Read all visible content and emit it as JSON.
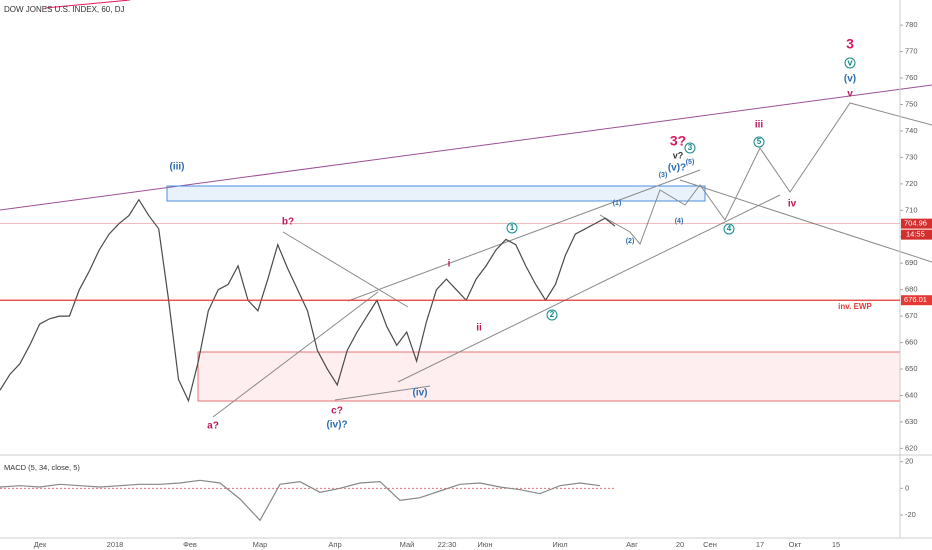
{
  "chart_data": {
    "type": "line",
    "title": "DOW JONES U.S. INDEX, 60, DJ",
    "series": [
      {
        "name": "DJ",
        "color": "#4a4a4a",
        "values": [
          642,
          648,
          652,
          659,
          667,
          669,
          670,
          670,
          680,
          687,
          695,
          701,
          705,
          708,
          714,
          708,
          703,
          676,
          646,
          638,
          653,
          672,
          680,
          682,
          689,
          676,
          672,
          684,
          697,
          688,
          680,
          672,
          657,
          650,
          644,
          657,
          664,
          670,
          676,
          666,
          659,
          664,
          653,
          668,
          680,
          684,
          680,
          676,
          684,
          689,
          695,
          699,
          697,
          689,
          682,
          676,
          682,
          693,
          701,
          703,
          705,
          707,
          704
        ]
      }
    ],
    "ylim": [
      617.5,
      789.5
    ],
    "yticks": [
      620,
      630,
      640,
      650,
      660,
      670,
      680,
      690,
      700,
      710,
      720,
      730,
      740,
      750,
      760,
      770,
      780
    ],
    "x_labels": [
      "Дек",
      "2018",
      "Фев",
      "Мар",
      "Апр",
      "Май",
      "22:30",
      "Июн",
      "Июл",
      "Авг",
      "20",
      "Сен",
      "17",
      "Окт",
      "15"
    ],
    "price_markers": [
      {
        "value": 704.96,
        "color": "#d32f2f"
      },
      {
        "value": 676.01,
        "color": "#e53935"
      }
    ],
    "countdown": "14:55",
    "annotations": [
      {
        "text": "3",
        "color": "#d81b60"
      },
      {
        "text": "v",
        "color": "#138a8a",
        "circled": true
      },
      {
        "text": "(v)",
        "color": "#2b6cb0"
      },
      {
        "text": "v",
        "color": "#c2185b"
      },
      {
        "text": "iii",
        "color": "#c2185b"
      },
      {
        "text": "3?",
        "color": "#d81b60"
      },
      {
        "text": "v?",
        "color": "#333333"
      },
      {
        "text": "(v)?",
        "color": "#2b6cb0"
      },
      {
        "text": "3",
        "color": "#138a8a",
        "circled": true
      },
      {
        "text": "(3)",
        "color": "#2b6cb0"
      },
      {
        "text": "(5)",
        "color": "#2b6cb0"
      },
      {
        "text": "(1)",
        "color": "#2b6cb0"
      },
      {
        "text": "(2)",
        "color": "#2b6cb0"
      },
      {
        "text": "(4)",
        "color": "#2b6cb0"
      },
      {
        "text": "5",
        "color": "#138a8a",
        "circled": true
      },
      {
        "text": "4",
        "color": "#138a8a",
        "circled": true
      },
      {
        "text": "iv",
        "color": "#c2185b"
      },
      {
        "text": "i",
        "color": "#c2185b"
      },
      {
        "text": "ii",
        "color": "#c2185b"
      },
      {
        "text": "1",
        "color": "#138a8a",
        "circled": true
      },
      {
        "text": "2",
        "color": "#138a8a",
        "circled": true
      },
      {
        "text": "b?",
        "color": "#c2185b"
      },
      {
        "text": "a?",
        "color": "#c2185b"
      },
      {
        "text": "c?",
        "color": "#c2185b"
      },
      {
        "text": "(iv)?",
        "color": "#2b6cb0"
      },
      {
        "text": "(iv)",
        "color": "#2b6cb0"
      },
      {
        "text": "(iii)",
        "color": "#2b6cb0"
      },
      {
        "text": "inv. EWP",
        "color": "#e53935"
      }
    ],
    "indicator": {
      "title": "MACD (5, 34, close, 5)",
      "series": [
        {
          "name": "MACD",
          "color": "#888888",
          "values": [
            1,
            2,
            1,
            3,
            2,
            1,
            2,
            3,
            3,
            4,
            6,
            4,
            -8,
            -24,
            3,
            5,
            -3,
            0,
            4,
            5,
            -9,
            -7,
            -2,
            3,
            4,
            1,
            -1,
            -4,
            2,
            4,
            2
          ]
        }
      ],
      "ylim": [
        -35,
        25
      ],
      "yticks": [
        20,
        0,
        -20
      ]
    }
  }
}
